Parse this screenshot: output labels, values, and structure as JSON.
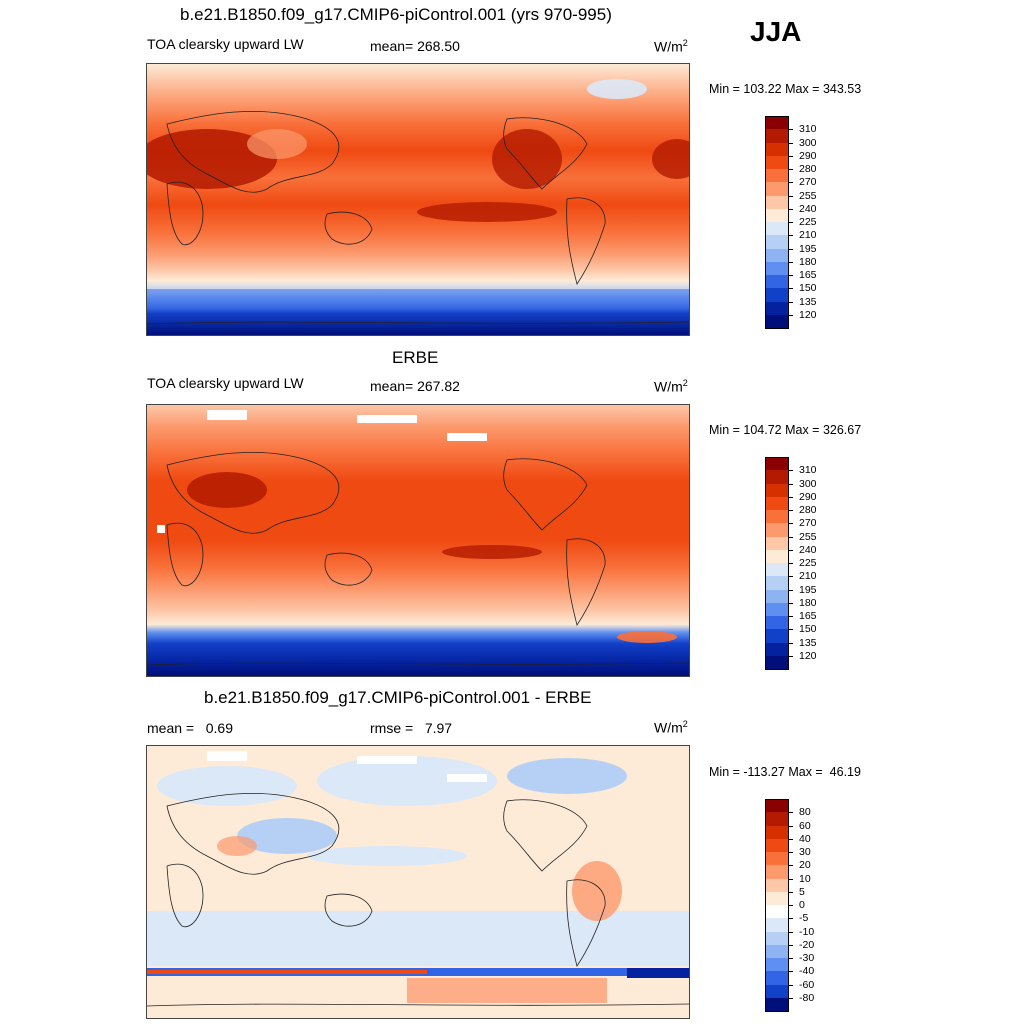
{
  "season": "JJA",
  "panels": [
    {
      "id": "model",
      "title": "b.e21.B1850.f09_g17.CMIP6-piControl.001 (yrs 970-995)",
      "left_label": "TOA clearsky upward LW",
      "center_label": "mean= 268.50",
      "units": "W/m",
      "units_sup": "2",
      "minmax": "Min = 103.22 Max = 343.53",
      "colorbar": "abs"
    },
    {
      "id": "obs",
      "title": "ERBE",
      "left_label": "TOA clearsky upward LW",
      "center_label": "mean= 267.82",
      "units": "W/m",
      "units_sup": "2",
      "minmax": "Min = 104.72 Max = 326.67",
      "colorbar": "abs"
    },
    {
      "id": "diff",
      "title": "b.e21.B1850.f09_g17.CMIP6-piControl.001 - ERBE",
      "left_label": "mean =   0.69",
      "center_label": "rmse =   7.97",
      "units": "W/m",
      "units_sup": "2",
      "minmax": "Min = -113.27 Max =  46.19",
      "colorbar": "diff"
    }
  ],
  "colorbars": {
    "abs": {
      "labels": [
        "310",
        "300",
        "290",
        "280",
        "270",
        "255",
        "240",
        "225",
        "210",
        "195",
        "180",
        "165",
        "150",
        "135",
        "120"
      ],
      "colors": [
        "#8b0000",
        "#b31a00",
        "#d63000",
        "#ef4a12",
        "#f9703a",
        "#fc9a6e",
        "#fdc7a8",
        "#fdebd8",
        "#dbe8f7",
        "#b6d0f5",
        "#8db3f2",
        "#5f8ff0",
        "#3265e5",
        "#1241c9",
        "#04229f",
        "#000f7a"
      ]
    },
    "diff": {
      "labels": [
        "80",
        "60",
        "40",
        "30",
        "20",
        "10",
        "5",
        "0",
        "-5",
        "-10",
        "-20",
        "-30",
        "-40",
        "-60",
        "-80"
      ],
      "colors": [
        "#8b0000",
        "#b31a00",
        "#d63000",
        "#ef4a12",
        "#f9703a",
        "#fc9a6e",
        "#fdc7a8",
        "#fdebd8",
        "#ffffff",
        "#dbe8f7",
        "#b6d0f5",
        "#8db3f2",
        "#5f8ff0",
        "#3265e5",
        "#1241c9",
        "#000f7a"
      ]
    }
  },
  "chart_data": {
    "type": "heatmap",
    "title": "TOA clearsky upward LW",
    "season": "JJA",
    "units": "W/m2",
    "panels": [
      {
        "name": "b.e21.B1850.f09_g17.CMIP6-piControl.001 (yrs 970-995)",
        "mean": 268.5,
        "min": 103.22,
        "max": 343.53
      },
      {
        "name": "ERBE",
        "mean": 267.82,
        "min": 104.72,
        "max": 326.67
      },
      {
        "name": "b.e21.B1850.f09_g17.CMIP6-piControl.001 - ERBE",
        "mean": 0.69,
        "rmse": 7.97,
        "min": -113.27,
        "max": 46.19
      }
    ],
    "levels_abs": [
      120,
      135,
      150,
      165,
      180,
      195,
      210,
      225,
      240,
      255,
      270,
      280,
      290,
      300,
      310
    ],
    "levels_diff": [
      -80,
      -60,
      -40,
      -30,
      -20,
      -10,
      -5,
      0,
      5,
      10,
      20,
      30,
      40,
      60,
      80
    ]
  }
}
